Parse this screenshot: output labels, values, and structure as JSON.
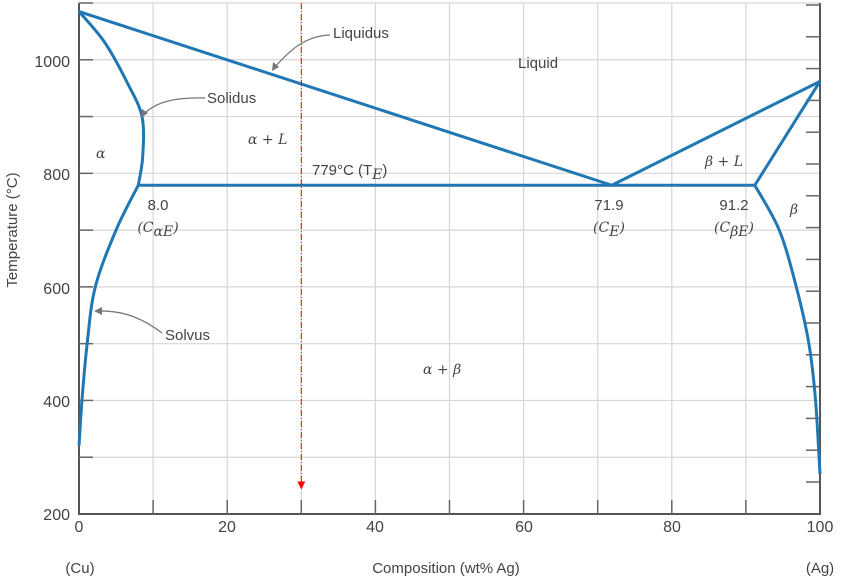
{
  "chart_data": {
    "type": "phase-diagram",
    "xlabel": "Composition (wt% Ag)",
    "ylabel": "Temperature (°C)",
    "xlim": [
      0,
      100
    ],
    "ylim": [
      200,
      1100
    ],
    "x_ticks": [
      "0",
      "20",
      "40",
      "60",
      "80",
      "100"
    ],
    "y_ticks": [
      "200",
      "400",
      "600",
      "800",
      "1000"
    ],
    "x_end_labels": {
      "left": "(Cu)",
      "right": "(Ag)"
    },
    "grid": true,
    "boundaries": [
      {
        "name": "liquidus-left",
        "points": [
          [
            0,
            1085
          ],
          [
            71.9,
            779
          ]
        ]
      },
      {
        "name": "liquidus-right",
        "points": [
          [
            71.9,
            779
          ],
          [
            100,
            962
          ]
        ]
      },
      {
        "name": "solidus-alpha",
        "points": [
          [
            0,
            1085
          ],
          [
            3.5,
            1030
          ],
          [
            6.5,
            960
          ],
          [
            8.5,
            900
          ],
          [
            8.6,
            830
          ],
          [
            8,
            779
          ]
        ]
      },
      {
        "name": "solvus-alpha",
        "points": [
          [
            8,
            779
          ],
          [
            5,
            700
          ],
          [
            2.2,
            600
          ],
          [
            1.1,
            500
          ],
          [
            0.4,
            400
          ],
          [
            0,
            320
          ]
        ]
      },
      {
        "name": "eutectic-isotherm",
        "points": [
          [
            8,
            779
          ],
          [
            91.2,
            779
          ]
        ]
      },
      {
        "name": "solidus-beta",
        "points": [
          [
            100,
            962
          ],
          [
            91.2,
            779
          ]
        ]
      },
      {
        "name": "solvus-beta",
        "points": [
          [
            91.2,
            779
          ],
          [
            94.5,
            700
          ],
          [
            96.8,
            600
          ],
          [
            98.5,
            500
          ],
          [
            99.4,
            400
          ],
          [
            100,
            270
          ]
        ]
      }
    ],
    "marker_line": {
      "x": 30,
      "from": 1100,
      "to": 245,
      "color": "#ff0000"
    },
    "boundary_color": "#1f77b4",
    "annotations": {
      "liquidus": "Liquidus",
      "solidus": "Solidus",
      "solvus": "Solvus",
      "liquid": "Liquid",
      "alpha": "α",
      "alpha_L": "α + L",
      "te": "779°C (T",
      "te_sub": "E",
      "ca_val": "8.0",
      "ca_label": "(C",
      "ca_sub": "αE",
      "ce_val": "71.9",
      "ce_label": "(C",
      "ce_sub": "E",
      "cb_val": "91.2",
      "cb_label": "(C",
      "cb_sub": "βE",
      "beta_L": "β + L",
      "beta": "β",
      "alpha_beta": "α + β",
      "close_paren": ")"
    }
  }
}
